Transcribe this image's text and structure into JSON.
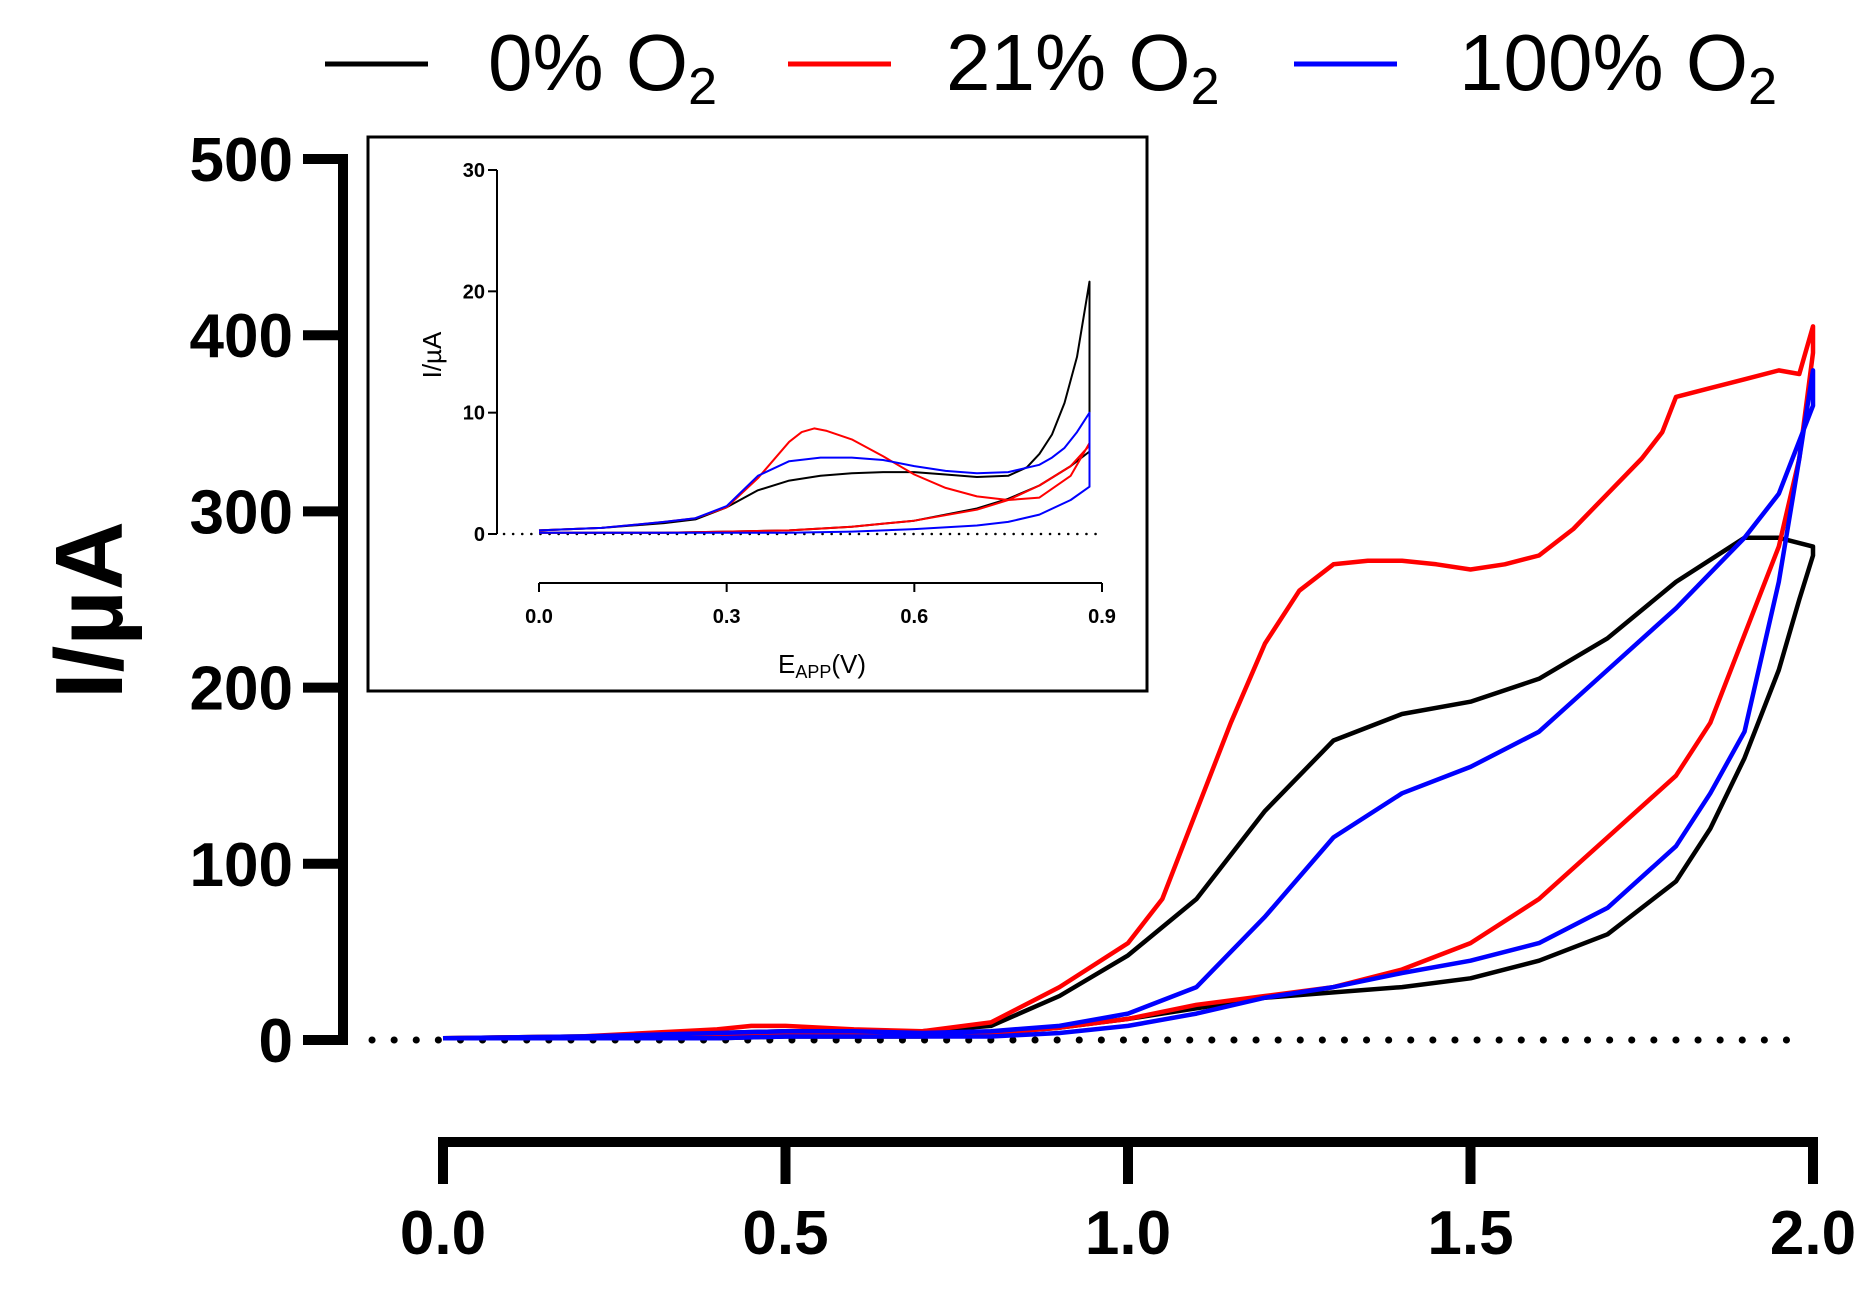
{
  "chart_data": [
    {
      "type": "line",
      "panel": "main",
      "title": "",
      "xlabel": "",
      "ylabel": "I/µA",
      "xlim": [
        0.0,
        2.0
      ],
      "ylim": [
        0,
        500
      ],
      "xticks": [
        0.0,
        0.5,
        1.0,
        1.5,
        2.0
      ],
      "xtick_labels": [
        "0.0",
        "0.5",
        "1.0",
        "1.5",
        "2.0"
      ],
      "yticks": [
        0,
        100,
        200,
        300,
        400,
        500
      ],
      "ytick_labels": [
        "0",
        "100",
        "200",
        "300",
        "400",
        "500"
      ],
      "zero_line": "dotted",
      "legend": {
        "placement": "top",
        "entries": [
          {
            "prefix": "0% O",
            "sub": "2",
            "color": "#000000"
          },
          {
            "prefix": "21% O",
            "sub": "2",
            "color": "#ff0000"
          },
          {
            "prefix": "100% O",
            "sub": "2",
            "color": "#0000ff"
          }
        ]
      },
      "series": [
        {
          "name": "0% O2",
          "color": "#000000",
          "x": [
            0.0,
            0.2,
            0.4,
            0.5,
            0.6,
            0.7,
            0.8,
            0.9,
            1.0,
            1.1,
            1.2,
            1.3,
            1.4,
            1.5,
            1.6,
            1.7,
            1.8,
            1.9,
            1.95,
            2.0,
            2.0,
            1.98,
            1.95,
            1.9,
            1.85,
            1.8,
            1.7,
            1.6,
            1.5,
            1.4,
            1.3,
            1.2,
            1.1,
            1.0,
            0.9,
            0.8,
            0.7,
            0.6,
            0.5,
            0.4,
            0.2,
            0.0
          ],
          "y": [
            1,
            2,
            4,
            5,
            5,
            5,
            8,
            25,
            48,
            80,
            130,
            170,
            185,
            192,
            205,
            228,
            260,
            285,
            285,
            280,
            275,
            250,
            210,
            160,
            120,
            90,
            60,
            45,
            35,
            30,
            27,
            24,
            18,
            12,
            7,
            4,
            2,
            2,
            2,
            1,
            1,
            1
          ]
        },
        {
          "name": "21% O2",
          "color": "#ff0000",
          "x": [
            0.0,
            0.2,
            0.4,
            0.45,
            0.5,
            0.6,
            0.7,
            0.8,
            0.9,
            1.0,
            1.05,
            1.1,
            1.15,
            1.2,
            1.25,
            1.3,
            1.35,
            1.4,
            1.45,
            1.5,
            1.55,
            1.6,
            1.65,
            1.7,
            1.75,
            1.78,
            1.8,
            1.85,
            1.9,
            1.95,
            1.98,
            2.0,
            2.0,
            1.98,
            1.95,
            1.9,
            1.85,
            1.8,
            1.7,
            1.6,
            1.5,
            1.4,
            1.3,
            1.2,
            1.1,
            1.0,
            0.9,
            0.8,
            0.7,
            0.6,
            0.5,
            0.4,
            0.2,
            0.0
          ],
          "y": [
            1,
            2,
            6,
            8,
            8,
            6,
            5,
            10,
            30,
            55,
            80,
            130,
            180,
            225,
            255,
            270,
            272,
            272,
            270,
            267,
            270,
            275,
            290,
            310,
            330,
            345,
            365,
            370,
            375,
            380,
            378,
            405,
            390,
            330,
            280,
            230,
            180,
            150,
            115,
            80,
            55,
            40,
            30,
            25,
            20,
            12,
            7,
            4,
            3,
            3,
            3,
            2,
            1,
            1
          ]
        },
        {
          "name": "100% O2",
          "color": "#0000ff",
          "x": [
            0.0,
            0.2,
            0.4,
            0.5,
            0.6,
            0.7,
            0.8,
            0.9,
            1.0,
            1.1,
            1.2,
            1.3,
            1.4,
            1.5,
            1.6,
            1.7,
            1.8,
            1.9,
            1.95,
            2.0,
            2.0,
            1.98,
            1.95,
            1.9,
            1.85,
            1.8,
            1.7,
            1.6,
            1.5,
            1.4,
            1.3,
            1.2,
            1.1,
            1.0,
            0.9,
            0.8,
            0.7,
            0.6,
            0.5,
            0.4,
            0.2,
            0.0
          ],
          "y": [
            1,
            2,
            4,
            5,
            5,
            4,
            5,
            8,
            15,
            30,
            70,
            115,
            140,
            155,
            175,
            210,
            245,
            285,
            310,
            360,
            380,
            330,
            260,
            175,
            140,
            110,
            75,
            55,
            45,
            38,
            30,
            24,
            15,
            8,
            4,
            2,
            2,
            2,
            2,
            1,
            1,
            1
          ]
        }
      ]
    },
    {
      "type": "line",
      "panel": "inset",
      "title": "",
      "xlabel_main": "E",
      "xlabel_sub": "APP",
      "xlabel_suffix": "(V)",
      "ylabel": "I/µA",
      "xlim": [
        0.0,
        0.9
      ],
      "ylim": [
        0,
        30
      ],
      "xticks": [
        0.0,
        0.3,
        0.6,
        0.9
      ],
      "xtick_labels": [
        "0.0",
        "0.3",
        "0.6",
        "0.9"
      ],
      "yticks": [
        0,
        10,
        20,
        30
      ],
      "ytick_labels": [
        "0",
        "10",
        "20",
        "30"
      ],
      "zero_line": "dotted",
      "series": [
        {
          "name": "0% O2",
          "color": "#000000",
          "x": [
            0.0,
            0.1,
            0.2,
            0.25,
            0.3,
            0.35,
            0.4,
            0.45,
            0.5,
            0.55,
            0.6,
            0.65,
            0.7,
            0.75,
            0.78,
            0.8,
            0.82,
            0.84,
            0.86,
            0.88,
            0.88,
            0.85,
            0.8,
            0.75,
            0.7,
            0.6,
            0.5,
            0.4,
            0.3,
            0.2,
            0.1,
            0.0
          ],
          "y": [
            0.3,
            0.5,
            0.9,
            1.2,
            2.2,
            3.6,
            4.4,
            4.8,
            5.0,
            5.1,
            5.1,
            4.9,
            4.7,
            4.8,
            5.5,
            6.6,
            8.2,
            10.8,
            14.6,
            20.8,
            6.8,
            5.6,
            4.0,
            2.9,
            2.1,
            1.1,
            0.6,
            0.3,
            0.2,
            0.1,
            0.1,
            0.1
          ]
        },
        {
          "name": "21% O2",
          "color": "#ff0000",
          "x": [
            0.0,
            0.1,
            0.2,
            0.25,
            0.3,
            0.35,
            0.4,
            0.42,
            0.44,
            0.46,
            0.5,
            0.55,
            0.6,
            0.65,
            0.7,
            0.75,
            0.8,
            0.85,
            0.88,
            0.88,
            0.85,
            0.8,
            0.75,
            0.7,
            0.6,
            0.5,
            0.4,
            0.3,
            0.2,
            0.1,
            0.0
          ],
          "y": [
            0.3,
            0.5,
            1.0,
            1.3,
            2.2,
            4.6,
            7.6,
            8.4,
            8.7,
            8.5,
            7.8,
            6.4,
            4.9,
            3.8,
            3.1,
            2.8,
            3.0,
            4.8,
            7.5,
            7.3,
            5.6,
            4.0,
            2.8,
            2.0,
            1.1,
            0.6,
            0.3,
            0.2,
            0.1,
            0.1,
            0.1
          ]
        },
        {
          "name": "100% O2",
          "color": "#0000ff",
          "x": [
            0.0,
            0.1,
            0.2,
            0.25,
            0.3,
            0.35,
            0.4,
            0.45,
            0.5,
            0.55,
            0.6,
            0.65,
            0.7,
            0.75,
            0.8,
            0.82,
            0.84,
            0.86,
            0.88,
            0.88,
            0.85,
            0.8,
            0.75,
            0.7,
            0.6,
            0.5,
            0.4,
            0.3,
            0.2,
            0.1,
            0.0
          ],
          "y": [
            0.3,
            0.5,
            1.0,
            1.3,
            2.3,
            4.8,
            6.0,
            6.3,
            6.3,
            6.1,
            5.6,
            5.2,
            5.0,
            5.1,
            5.7,
            6.3,
            7.1,
            8.4,
            10.0,
            3.9,
            2.8,
            1.6,
            1.0,
            0.7,
            0.4,
            0.2,
            0.1,
            0.1,
            0.1,
            0.1,
            0.1
          ]
        }
      ]
    }
  ]
}
